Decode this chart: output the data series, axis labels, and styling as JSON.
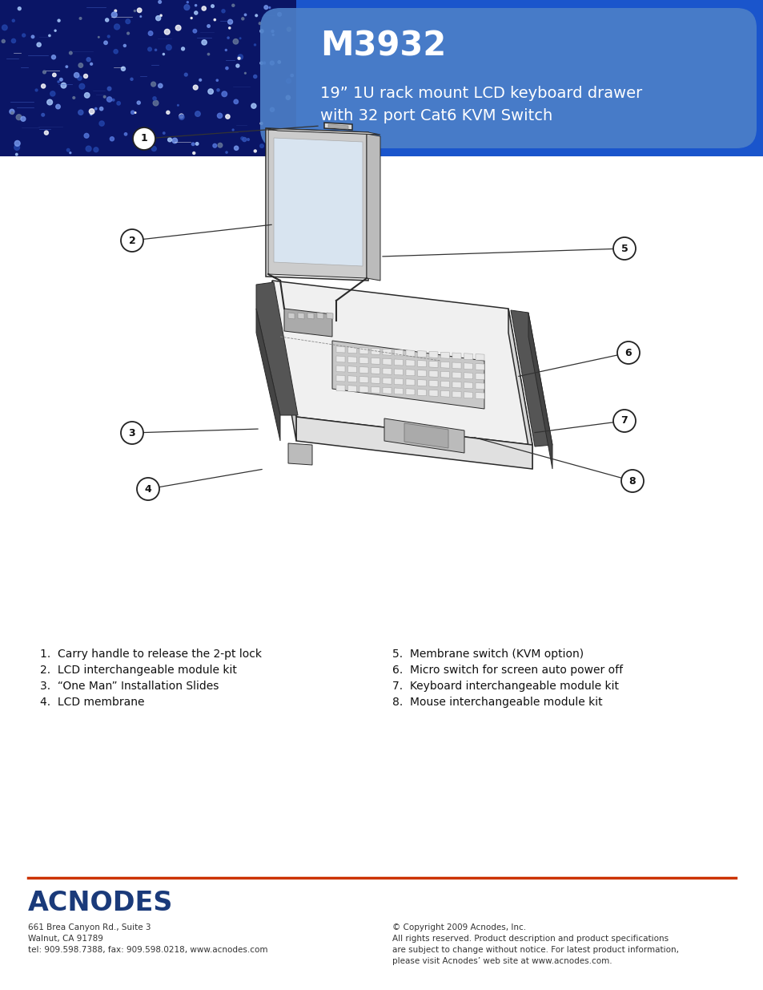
{
  "title": "M3932",
  "subtitle": "19” 1U rack mount LCD keyboard drawer\nwith 32 port Cat6 KVM Switch",
  "header_bg_color": "#1a55cc",
  "header_text_box_color": "#5588cc",
  "title_color": "#ffffff",
  "subtitle_color": "#ffffff",
  "page_bg": "#ffffff",
  "labels_left": [
    "1.  Carry handle to release the 2-pt lock",
    "2.  LCD interchangeable module kit",
    "3.  “One Man” Installation Slides",
    "4.  LCD membrane"
  ],
  "labels_right": [
    "5.  Membrane switch (KVM option)",
    "6.  Micro switch for screen auto power off",
    "7.  Keyboard interchangeable module kit",
    "8.  Mouse interchangeable module kit"
  ],
  "footer_line_color": "#cc3300",
  "acnodes_color": "#1a3a7a",
  "acnodes_text": "ACNODES",
  "footer_left_lines": [
    "661 Brea Canyon Rd., Suite 3",
    "Walnut, CA 91789",
    "tel: 909.598.7388, fax: 909.598.0218, www.acnodes.com"
  ],
  "footer_right_lines": [
    "© Copyright 2009 Acnodes, Inc.",
    "All rights reserved. Product description and product specifications",
    "are subject to change without notice. For latest product information,",
    "please visit Acnodes’ web site at www.acnodes.com."
  ]
}
